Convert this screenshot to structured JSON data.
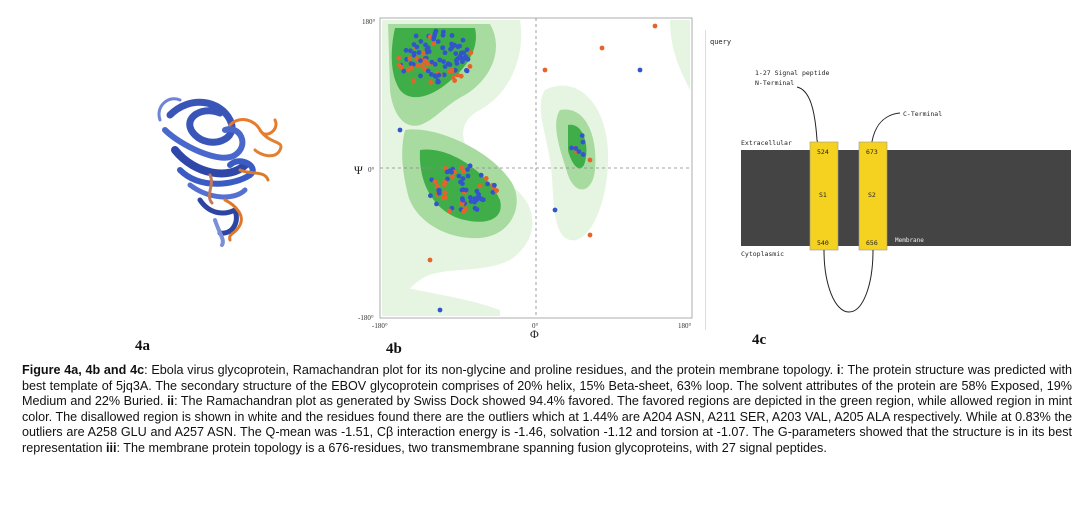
{
  "panels": {
    "a_label": "4a",
    "b_label": "4b",
    "c_label": "4c"
  },
  "ramachandran": {
    "y_label": "Ψ",
    "x_label": "Φ",
    "y_tick_top": "180°",
    "y_tick_mid": "0°",
    "y_tick_bottom": "-180°",
    "x_tick_left": "-180°",
    "x_tick_mid": "0°",
    "x_tick_right": "180°",
    "colors": {
      "favored": "#3fae49",
      "allowed": "#a8dba0",
      "generous": "#e6f5e2",
      "residue_blue": "#3355cc",
      "residue_orange": "#e8632a"
    }
  },
  "topology": {
    "query": "query",
    "signal_peptide": "1-27 Signal peptide",
    "n_terminal": "N-Terminal",
    "c_terminal": "C-Terminal",
    "extracellular": "Extracellular",
    "cytoplasmic": "Cytoplasmic",
    "membrane": "Membrane",
    "s1": "S1",
    "s2": "S2",
    "s1_top": "524",
    "s1_bottom": "540",
    "s2_top": "673",
    "s2_bottom": "656",
    "colors": {
      "helix": "#f5d220",
      "membrane": "#444444"
    }
  },
  "caption": {
    "title": "Figure 4a, 4b and 4c",
    "t1": ": Ebola virus glycoprotein, Ramachandran plot for its non-glycine and proline residues, and the protein membrane topology. ",
    "i_marker": "i",
    "t2": ": The protein structure was predicted with best template of 5jq3A. The secondary structure of the EBOV glycoprotein comprises of 20% helix, 15% Beta-sheet, 63% loop. The solvent attributes of the protein are 58% Exposed, 19% Medium and 22% Buried. ",
    "ii_marker": "ii",
    "t3": ": The Ramachandran plot as generated by Swiss Dock showed 94.4% favored. The favored regions are depicted in the green region, while allowed region in mint color. The disallowed region is shown in white and the residues found there are the outliers which at 1.44% are A204 ASN, A211 SER, A203 VAL, A205 ALA respectively. While at 0.83% the outliers are A258 GLU and A257 ASN. The Q-mean was -1.51, Cβ interaction energy is -1.46, solvation -1.12 and torsion at -1.07. The G-parameters showed that the structure is in its best representation ",
    "iii_marker": "iii",
    "t4": ": The membrane protein topology is a 676-residues, two transmembrane spanning fusion glycoproteins, with 27 signal peptides."
  }
}
